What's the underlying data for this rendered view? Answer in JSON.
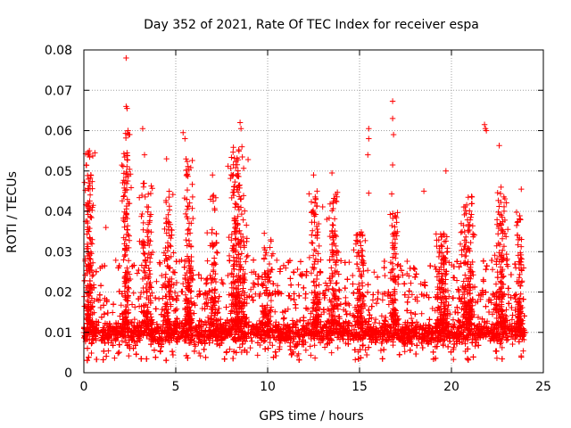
{
  "chart_data": {
    "type": "scatter",
    "title": "Day 352 of 2021, Rate Of TEC Index for receiver espa",
    "xlabel": "GPS time / hours",
    "ylabel": "ROTI / TECUs",
    "xlim": [
      0,
      25
    ],
    "ylim": [
      0,
      0.08
    ],
    "grid": true,
    "marker": "+",
    "series_color": "#ff0000",
    "x_ticks": [
      {
        "value": 0,
        "label": "0"
      },
      {
        "value": 5,
        "label": "5"
      },
      {
        "value": 10,
        "label": "10"
      },
      {
        "value": 15,
        "label": "15"
      },
      {
        "value": 20,
        "label": "20"
      },
      {
        "value": 25,
        "label": "25"
      }
    ],
    "y_ticks": [
      {
        "value": 0,
        "label": "0"
      },
      {
        "value": 0.01,
        "label": "0.01"
      },
      {
        "value": 0.02,
        "label": "0.02"
      },
      {
        "value": 0.03,
        "label": "0.03"
      },
      {
        "value": 0.04,
        "label": "0.04"
      },
      {
        "value": 0.05,
        "label": "0.05"
      },
      {
        "value": 0.06,
        "label": "0.06"
      },
      {
        "value": 0.07,
        "label": "0.07"
      },
      {
        "value": 0.08,
        "label": "0.08"
      }
    ],
    "dense_band": {
      "x_range": [
        0,
        24
      ],
      "y_range": [
        0.003,
        0.02
      ],
      "typical_y": 0.01
    },
    "notable_points": [
      {
        "x": 2.3,
        "y": 0.078
      },
      {
        "x": 2.3,
        "y": 0.066
      },
      {
        "x": 2.35,
        "y": 0.0655
      },
      {
        "x": 2.4,
        "y": 0.06
      },
      {
        "x": 2.45,
        "y": 0.059
      },
      {
        "x": 3.2,
        "y": 0.0605
      },
      {
        "x": 3.3,
        "y": 0.054
      },
      {
        "x": 5.4,
        "y": 0.0595
      },
      {
        "x": 5.5,
        "y": 0.058
      },
      {
        "x": 8.5,
        "y": 0.062
      },
      {
        "x": 8.55,
        "y": 0.0605
      },
      {
        "x": 8.6,
        "y": 0.056
      },
      {
        "x": 15.5,
        "y": 0.0605
      },
      {
        "x": 15.5,
        "y": 0.058
      },
      {
        "x": 15.45,
        "y": 0.054
      },
      {
        "x": 15.5,
        "y": 0.0445
      },
      {
        "x": 16.8,
        "y": 0.0673
      },
      {
        "x": 16.8,
        "y": 0.063
      },
      {
        "x": 16.85,
        "y": 0.059
      },
      {
        "x": 16.8,
        "y": 0.0515
      },
      {
        "x": 16.75,
        "y": 0.0443
      },
      {
        "x": 19.7,
        "y": 0.05
      },
      {
        "x": 21.8,
        "y": 0.0615
      },
      {
        "x": 21.85,
        "y": 0.0605
      },
      {
        "x": 21.9,
        "y": 0.06
      },
      {
        "x": 22.6,
        "y": 0.0563
      },
      {
        "x": 22.7,
        "y": 0.046
      },
      {
        "x": 23.8,
        "y": 0.0455
      },
      {
        "x": 0.1,
        "y": 0.0375
      },
      {
        "x": 0.2,
        "y": 0.04
      },
      {
        "x": 0.3,
        "y": 0.055
      },
      {
        "x": 0.6,
        "y": 0.0545
      },
      {
        "x": 1.2,
        "y": 0.036
      },
      {
        "x": 4.5,
        "y": 0.053
      },
      {
        "x": 7.0,
        "y": 0.049
      },
      {
        "x": 12.5,
        "y": 0.049
      },
      {
        "x": 13.5,
        "y": 0.0495
      },
      {
        "x": 18.5,
        "y": 0.045
      },
      {
        "x": 23.5,
        "y": 0.026
      }
    ],
    "burst_regions": [
      {
        "x_center": 0.3,
        "x_spread": 0.4,
        "y_max": 0.055,
        "count": 160
      },
      {
        "x_center": 2.3,
        "x_spread": 0.35,
        "y_max": 0.06,
        "count": 140
      },
      {
        "x_center": 3.4,
        "x_spread": 0.6,
        "y_max": 0.047,
        "count": 130
      },
      {
        "x_center": 4.6,
        "x_spread": 0.5,
        "y_max": 0.045,
        "count": 100
      },
      {
        "x_center": 5.7,
        "x_spread": 0.45,
        "y_max": 0.053,
        "count": 140
      },
      {
        "x_center": 7.0,
        "x_spread": 0.5,
        "y_max": 0.045,
        "count": 90
      },
      {
        "x_center": 8.4,
        "x_spread": 0.8,
        "y_max": 0.056,
        "count": 260
      },
      {
        "x_center": 10.0,
        "x_spread": 0.5,
        "y_max": 0.035,
        "count": 80
      },
      {
        "x_center": 12.6,
        "x_spread": 0.5,
        "y_max": 0.045,
        "count": 110
      },
      {
        "x_center": 13.6,
        "x_spread": 0.5,
        "y_max": 0.045,
        "count": 110
      },
      {
        "x_center": 15.0,
        "x_spread": 0.6,
        "y_max": 0.035,
        "count": 90
      },
      {
        "x_center": 16.9,
        "x_spread": 0.4,
        "y_max": 0.04,
        "count": 90
      },
      {
        "x_center": 19.5,
        "x_spread": 0.6,
        "y_max": 0.035,
        "count": 140
      },
      {
        "x_center": 20.9,
        "x_spread": 0.7,
        "y_max": 0.044,
        "count": 160
      },
      {
        "x_center": 22.7,
        "x_spread": 0.6,
        "y_max": 0.045,
        "count": 140
      },
      {
        "x_center": 23.7,
        "x_spread": 0.3,
        "y_max": 0.04,
        "count": 80
      }
    ]
  }
}
